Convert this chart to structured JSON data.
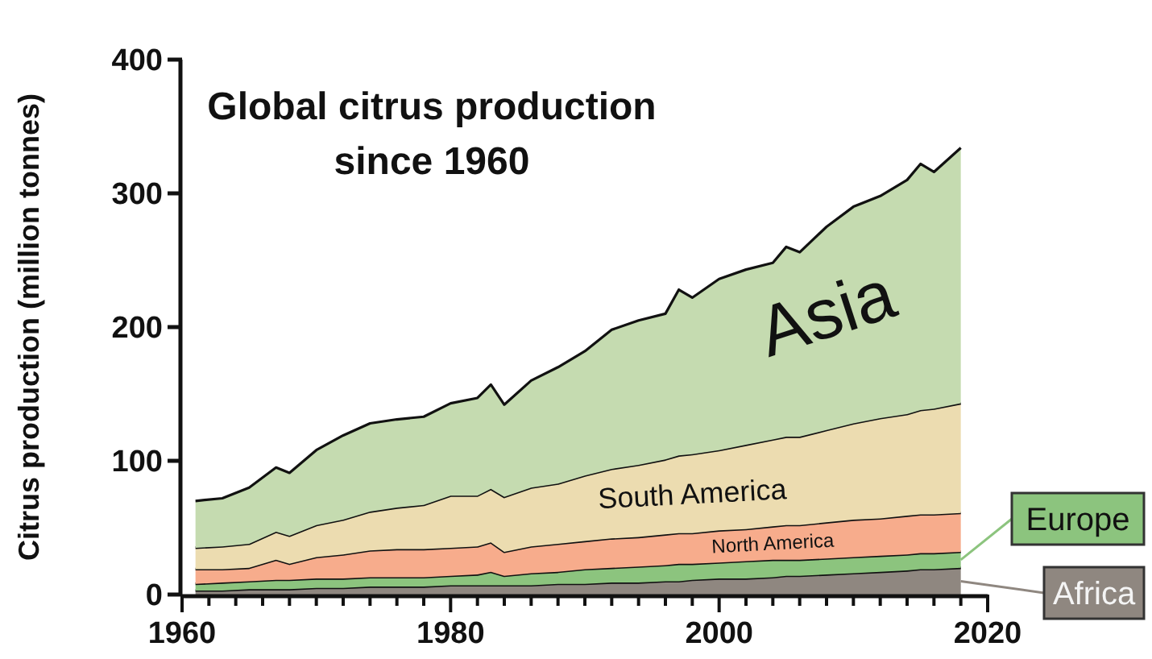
{
  "chart_data": {
    "type": "area",
    "stacked": true,
    "title": "Global citrus production since 1960",
    "ylabel": "Citrus production (million tonnes)",
    "x": [
      1961,
      1963,
      1965,
      1967,
      1968,
      1970,
      1972,
      1974,
      1976,
      1978,
      1980,
      1982,
      1983,
      1984,
      1986,
      1988,
      1990,
      1992,
      1994,
      1996,
      1997,
      1998,
      2000,
      2002,
      2004,
      2005,
      2006,
      2008,
      2010,
      2012,
      2014,
      2015,
      2016,
      2018
    ],
    "xlim": [
      1960,
      2020
    ],
    "xticks": [
      1960,
      {
        "value": 1962,
        "label": null
      },
      {
        "value": 1964,
        "label": null
      },
      {
        "value": 1966,
        "label": null
      },
      {
        "value": 1968,
        "label": null
      },
      {
        "value": 1970,
        "label": null
      },
      {
        "value": 1972,
        "label": null
      },
      {
        "value": 1974,
        "label": null
      },
      {
        "value": 1976,
        "label": null
      },
      {
        "value": 1978,
        "label": null
      },
      1980,
      {
        "value": 1982,
        "label": null
      },
      {
        "value": 1984,
        "label": null
      },
      {
        "value": 1986,
        "label": null
      },
      {
        "value": 1988,
        "label": null
      },
      {
        "value": 1990,
        "label": null
      },
      {
        "value": 1992,
        "label": null
      },
      {
        "value": 1994,
        "label": null
      },
      {
        "value": 1996,
        "label": null
      },
      {
        "value": 1998,
        "label": null
      },
      2000,
      {
        "value": 2002,
        "label": null
      },
      {
        "value": 2004,
        "label": null
      },
      {
        "value": 2006,
        "label": null
      },
      {
        "value": 2008,
        "label": null
      },
      {
        "value": 2010,
        "label": null
      },
      {
        "value": 2012,
        "label": null
      },
      {
        "value": 2014,
        "label": null
      },
      {
        "value": 2016,
        "label": null
      },
      {
        "value": 2018,
        "label": null
      },
      2020
    ],
    "ylim": [
      0,
      400
    ],
    "yticks": [
      0,
      100,
      200,
      300,
      400
    ],
    "grid": false,
    "legend": "bottom right",
    "series": [
      {
        "name": "Africa",
        "color": "#8f8780",
        "values": [
          3,
          3,
          4,
          4,
          4,
          5,
          5,
          6,
          6,
          6,
          7,
          7,
          7,
          7,
          7,
          8,
          8,
          9,
          9,
          10,
          10,
          11,
          12,
          12,
          13,
          14,
          14,
          15,
          16,
          17,
          18,
          19,
          19,
          20
        ]
      },
      {
        "name": "Europe",
        "color": "#8cc47e",
        "values": [
          5,
          6,
          6,
          7,
          7,
          7,
          7,
          7,
          7,
          7,
          7,
          8,
          10,
          7,
          9,
          9,
          11,
          11,
          12,
          12,
          13,
          12,
          12,
          13,
          13,
          12,
          12,
          12,
          12,
          12,
          12,
          12,
          12,
          12
        ]
      },
      {
        "name": "North America",
        "color": "#f7ac8c",
        "values": [
          11,
          10,
          10,
          15,
          12,
          16,
          18,
          20,
          21,
          21,
          21,
          21,
          22,
          18,
          20,
          21,
          21,
          22,
          22,
          23,
          23,
          23,
          24,
          24,
          25,
          26,
          26,
          27,
          28,
          28,
          29,
          29,
          29,
          29
        ]
      },
      {
        "name": "South America",
        "color": "#ecdcb0",
        "values": [
          16,
          17,
          18,
          21,
          21,
          24,
          26,
          29,
          31,
          33,
          39,
          38,
          40,
          41,
          44,
          45,
          49,
          52,
          54,
          56,
          58,
          59,
          60,
          63,
          65,
          66,
          66,
          69,
          72,
          75,
          76,
          78,
          79,
          82
        ]
      },
      {
        "name": "Asia",
        "color": "#c5dbb0",
        "values": [
          35,
          36,
          42,
          48,
          47,
          56,
          63,
          66,
          66,
          66,
          69,
          73,
          78,
          69,
          80,
          87,
          93,
          104,
          108,
          109,
          124,
          117,
          128,
          131,
          132,
          142,
          138,
          152,
          162,
          166,
          175,
          184,
          177,
          191
        ]
      }
    ]
  }
}
